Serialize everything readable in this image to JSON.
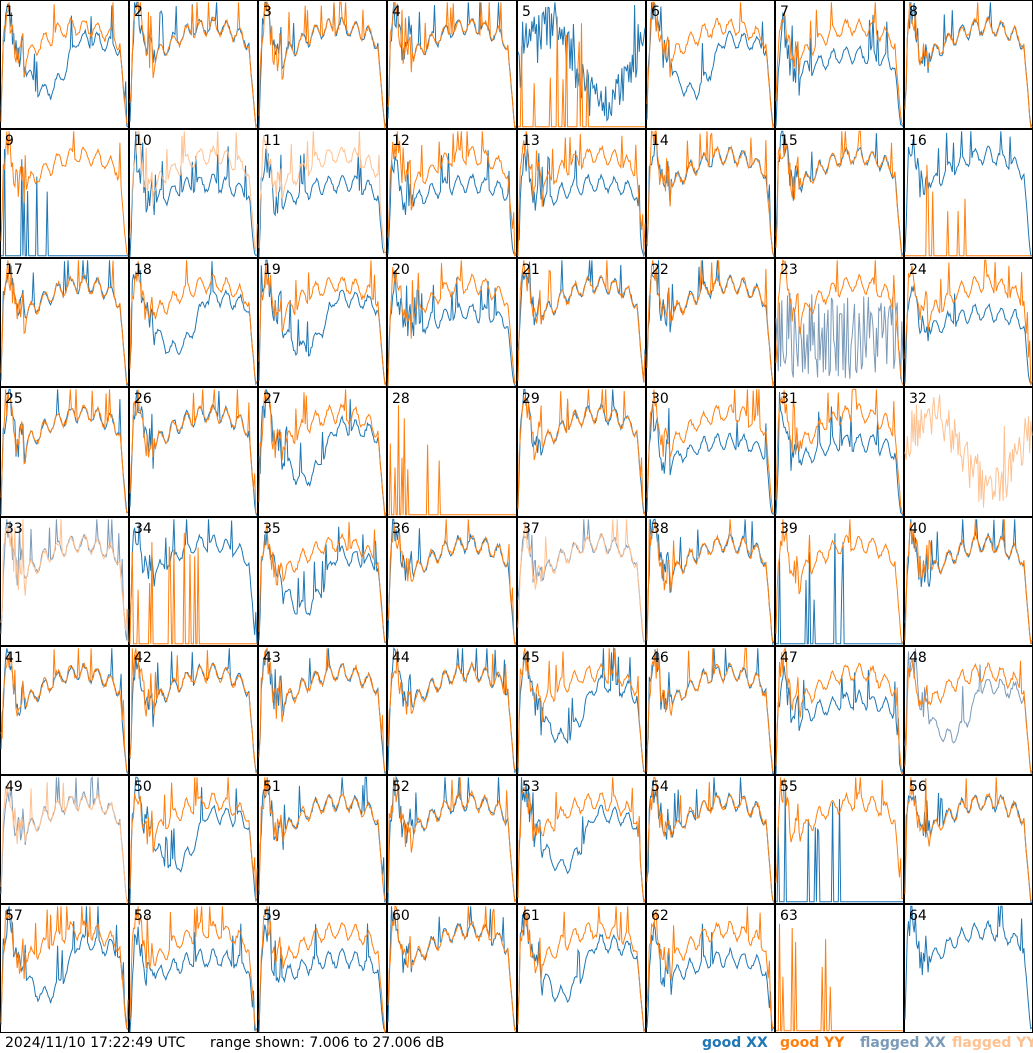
{
  "chart_data": {
    "type": "line",
    "grid": {
      "rows": 8,
      "cols": 8
    },
    "panels": [
      {
        "label": "1",
        "xx": "good",
        "yy": "good",
        "style": "dip"
      },
      {
        "label": "2",
        "xx": "good",
        "yy": "good",
        "style": "normal"
      },
      {
        "label": "3",
        "xx": "good",
        "yy": "good",
        "style": "normal"
      },
      {
        "label": "4",
        "xx": "good",
        "yy": "good",
        "style": "normal"
      },
      {
        "label": "5",
        "xx": "good",
        "yy": "spiky",
        "style": "noisy"
      },
      {
        "label": "6",
        "xx": "good",
        "yy": "good",
        "style": "dip"
      },
      {
        "label": "7",
        "xx": "good",
        "yy": "good",
        "style": "split"
      },
      {
        "label": "8",
        "xx": "good",
        "yy": "good",
        "style": "normal"
      },
      {
        "label": "9",
        "xx": "spiky",
        "yy": "good",
        "style": "normal"
      },
      {
        "label": "10",
        "xx": "good",
        "yy": "flagged",
        "style": "split"
      },
      {
        "label": "11",
        "xx": "good",
        "yy": "flagged",
        "style": "split"
      },
      {
        "label": "12",
        "xx": "good",
        "yy": "good",
        "style": "split"
      },
      {
        "label": "13",
        "xx": "good",
        "yy": "good",
        "style": "split"
      },
      {
        "label": "14",
        "xx": "good",
        "yy": "good",
        "style": "normal"
      },
      {
        "label": "15",
        "xx": "good",
        "yy": "good",
        "style": "normal"
      },
      {
        "label": "16",
        "xx": "good",
        "yy": "spiky",
        "style": "normal"
      },
      {
        "label": "17",
        "xx": "good",
        "yy": "good",
        "style": "normal"
      },
      {
        "label": "18",
        "xx": "good",
        "yy": "good",
        "style": "dip"
      },
      {
        "label": "19",
        "xx": "good",
        "yy": "good",
        "style": "dip"
      },
      {
        "label": "20",
        "xx": "good",
        "yy": "good",
        "style": "split"
      },
      {
        "label": "21",
        "xx": "good",
        "yy": "good",
        "style": "normal"
      },
      {
        "label": "22",
        "xx": "good",
        "yy": "good",
        "style": "normal"
      },
      {
        "label": "23",
        "xx": "flagged-noisy",
        "yy": "good",
        "style": "normal"
      },
      {
        "label": "24",
        "xx": "good",
        "yy": "good",
        "style": "split"
      },
      {
        "label": "25",
        "xx": "good",
        "yy": "good",
        "style": "normal"
      },
      {
        "label": "26",
        "xx": "good",
        "yy": "good",
        "style": "normal"
      },
      {
        "label": "27",
        "xx": "good",
        "yy": "good",
        "style": "dip"
      },
      {
        "label": "28",
        "xx": "none",
        "yy": "spiky",
        "style": "normal"
      },
      {
        "label": "29",
        "xx": "good",
        "yy": "good",
        "style": "normal"
      },
      {
        "label": "30",
        "xx": "good",
        "yy": "good",
        "style": "split"
      },
      {
        "label": "31",
        "xx": "good",
        "yy": "good",
        "style": "split"
      },
      {
        "label": "32",
        "xx": "none",
        "yy": "flagged",
        "style": "noisy"
      },
      {
        "label": "33",
        "xx": "flagged",
        "yy": "flagged",
        "style": "normal"
      },
      {
        "label": "34",
        "xx": "good",
        "yy": "spiky",
        "style": "normal"
      },
      {
        "label": "35",
        "xx": "good",
        "yy": "good",
        "style": "dip"
      },
      {
        "label": "36",
        "xx": "good",
        "yy": "good",
        "style": "normal"
      },
      {
        "label": "37",
        "xx": "flagged",
        "yy": "flagged",
        "style": "normal"
      },
      {
        "label": "38",
        "xx": "good",
        "yy": "good",
        "style": "normal"
      },
      {
        "label": "39",
        "xx": "spiky",
        "yy": "good",
        "style": "normal"
      },
      {
        "label": "40",
        "xx": "good",
        "yy": "good",
        "style": "normal"
      },
      {
        "label": "41",
        "xx": "good",
        "yy": "good",
        "style": "normal"
      },
      {
        "label": "42",
        "xx": "good",
        "yy": "good",
        "style": "normal"
      },
      {
        "label": "43",
        "xx": "good",
        "yy": "good",
        "style": "normal"
      },
      {
        "label": "44",
        "xx": "good",
        "yy": "good",
        "style": "normal"
      },
      {
        "label": "45",
        "xx": "good",
        "yy": "good",
        "style": "dip"
      },
      {
        "label": "46",
        "xx": "good",
        "yy": "good",
        "style": "normal"
      },
      {
        "label": "47",
        "xx": "good",
        "yy": "good",
        "style": "split"
      },
      {
        "label": "48",
        "xx": "flagged",
        "yy": "good",
        "style": "dip"
      },
      {
        "label": "49",
        "xx": "flagged",
        "yy": "flagged",
        "style": "normal"
      },
      {
        "label": "50",
        "xx": "good",
        "yy": "good",
        "style": "dip"
      },
      {
        "label": "51",
        "xx": "good",
        "yy": "good",
        "style": "normal"
      },
      {
        "label": "52",
        "xx": "good",
        "yy": "good",
        "style": "normal"
      },
      {
        "label": "53",
        "xx": "good",
        "yy": "good",
        "style": "dip"
      },
      {
        "label": "54",
        "xx": "good",
        "yy": "good",
        "style": "normal"
      },
      {
        "label": "55",
        "xx": "spiky",
        "yy": "good",
        "style": "normal"
      },
      {
        "label": "56",
        "xx": "good",
        "yy": "good",
        "style": "normal"
      },
      {
        "label": "57",
        "xx": "good",
        "yy": "good",
        "style": "dip"
      },
      {
        "label": "58",
        "xx": "good",
        "yy": "good",
        "style": "split"
      },
      {
        "label": "59",
        "xx": "good",
        "yy": "good",
        "style": "split"
      },
      {
        "label": "60",
        "xx": "good",
        "yy": "good",
        "style": "normal"
      },
      {
        "label": "61",
        "xx": "good",
        "yy": "good",
        "style": "dip"
      },
      {
        "label": "62",
        "xx": "good",
        "yy": "good",
        "style": "split"
      },
      {
        "label": "63",
        "xx": "none",
        "yy": "spiky",
        "style": "normal"
      },
      {
        "label": "64",
        "xx": "good",
        "yy": "none",
        "style": "normal"
      }
    ],
    "range_db": [
      7.006,
      27.006
    ],
    "legend": [
      {
        "label": "good XX",
        "color": "#1f77b4"
      },
      {
        "label": "good YY",
        "color": "#ff7f0e"
      },
      {
        "label": "flagged XX",
        "color": "#7b9ab8"
      },
      {
        "label": "flagged YY",
        "color": "#ffc190"
      }
    ]
  },
  "footer": {
    "timestamp": "2024/11/10 17:22:49 UTC",
    "range": "range shown: 7.006 to 27.006 dB"
  },
  "legend_labels": {
    "good_xx": "good XX",
    "good_yy": "good YY",
    "flagged_xx": "flagged XX",
    "flagged_yy": "flagged YY"
  }
}
